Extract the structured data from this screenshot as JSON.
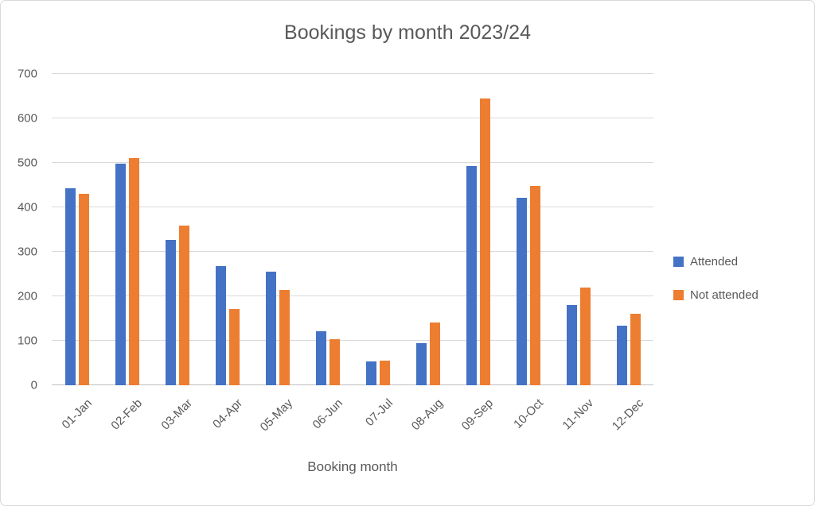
{
  "chart_data": {
    "type": "bar",
    "title": "Bookings by month 2023/24",
    "xlabel": "Booking month",
    "ylabel": "",
    "ylim": [
      0,
      700
    ],
    "yticks": [
      0,
      100,
      200,
      300,
      400,
      500,
      600,
      700
    ],
    "grid": true,
    "legend_position": "right",
    "categories": [
      "01-Jan",
      "02-Feb",
      "03-Mar",
      "04-Apr",
      "05-May",
      "06-Jun",
      "07-Jul",
      "08-Aug",
      "09-Sep",
      "10-Oct",
      "11-Nov",
      "12-Dec"
    ],
    "series": [
      {
        "name": "Attended",
        "color": "#4472C4",
        "values": [
          442,
          498,
          326,
          267,
          256,
          121,
          53,
          95,
          492,
          421,
          181,
          134
        ]
      },
      {
        "name": "Not attended",
        "color": "#ED7D31",
        "values": [
          431,
          511,
          359,
          172,
          215,
          104,
          56,
          141,
          645,
          449,
          220,
          160
        ]
      }
    ]
  },
  "colors": {
    "text": "#595959",
    "gridline": "#D9D9D9",
    "axis_line": "#BFBFBF",
    "frame_border": "#D9D9D9",
    "background": "#FFFFFF"
  }
}
